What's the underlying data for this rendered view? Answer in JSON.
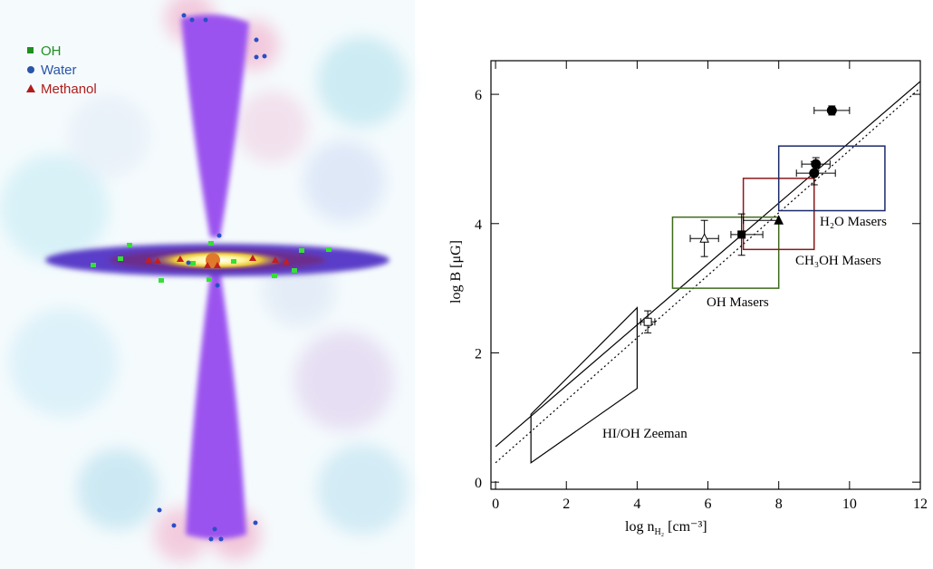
{
  "illustration": {
    "legend": [
      {
        "label": "OH",
        "color": "#1f8f1f",
        "marker": "square"
      },
      {
        "label": "Water",
        "color": "#2a55a8",
        "marker": "circle"
      },
      {
        "label": "Methanol",
        "color": "#b01c1c",
        "marker": "triangle"
      }
    ]
  },
  "chart_data": {
    "type": "scatter",
    "ylabel": "log B [μG]",
    "xlabel": {
      "text": "log n",
      "sub": "H₂",
      "rest": " [cm⁻³]"
    },
    "xlim": [
      -0.13,
      12
    ],
    "ylim": [
      -0.11,
      6.52
    ],
    "xticks": [
      0,
      2,
      4,
      6,
      8,
      10,
      12
    ],
    "yticks": [
      0,
      2,
      4,
      6
    ],
    "points": [
      {
        "marker": "circle",
        "filled": true,
        "x": 9.5,
        "y": 5.75,
        "xerr": [
          0.5,
          0.5
        ],
        "yerr": [
          0.07,
          0.07
        ]
      },
      {
        "marker": "circle",
        "filled": true,
        "x": 9.05,
        "y": 4.92,
        "xerr": [
          0.4,
          0.4
        ],
        "yerr": [
          0.1,
          0.1
        ]
      },
      {
        "marker": "circle",
        "filled": true,
        "x": 9.0,
        "y": 4.78,
        "xerr": [
          0.5,
          0.6
        ],
        "yerr": [
          0.18,
          0.18
        ]
      },
      {
        "marker": "triangle",
        "filled": true,
        "x": 8.0,
        "y": 4.05,
        "xerr": [
          1.0,
          0
        ],
        "yerr": [
          0,
          0
        ]
      },
      {
        "marker": "square",
        "filled": true,
        "x": 6.95,
        "y": 3.83,
        "xerr": [
          0.3,
          0.6
        ],
        "yerr": [
          0.32,
          0.32
        ]
      },
      {
        "marker": "triangle",
        "filled": false,
        "x": 5.9,
        "y": 3.77,
        "xerr": [
          0.4,
          0.4
        ],
        "yerr": [
          0.28,
          0.28
        ]
      },
      {
        "marker": "square",
        "filled": false,
        "x": 4.3,
        "y": 2.48,
        "xerr": [
          0.2,
          0.2
        ],
        "yerr": [
          0.17,
          0.17
        ]
      }
    ],
    "fits": [
      {
        "style": "solid",
        "x": [
          0,
          12
        ],
        "y": [
          0.55,
          6.2
        ]
      },
      {
        "style": "dotted",
        "x": [
          0,
          12
        ],
        "y": [
          0.3,
          6.1
        ]
      }
    ],
    "regions": [
      {
        "label": "OH Masers",
        "color": "#3d6b1a",
        "x": [
          5,
          8
        ],
        "y": [
          3,
          4.1
        ]
      },
      {
        "label": "CH₃OH Masers",
        "color": "#8b1a1a",
        "x": [
          7,
          9
        ],
        "y": [
          3.6,
          4.7
        ]
      },
      {
        "label": "H₂O Masers",
        "color": "#1a2a6b",
        "x": [
          8,
          11
        ],
        "y": [
          4.2,
          5.2
        ]
      }
    ],
    "zeeman": {
      "label": "HI/OH Zeeman",
      "x": [
        1,
        1,
        4,
        4
      ],
      "y": [
        0.3,
        1.05,
        2.7,
        1.45
      ]
    }
  }
}
